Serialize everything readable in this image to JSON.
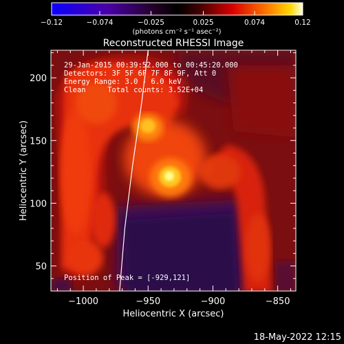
{
  "chart_data": {
    "type": "heatmap",
    "title": "Reconstructed RHESSI Image",
    "xlabel": "Heliocentric X (arcsec)",
    "ylabel": "Heliocentric Y (arcsec)",
    "xlim": [
      -1025,
      -836
    ],
    "ylim": [
      30,
      222
    ],
    "xticks": [
      -1000,
      -950,
      -900,
      -850
    ],
    "yticks": [
      50,
      100,
      150,
      200
    ],
    "xtick_labels": [
      "−1000",
      "−950",
      "−900",
      "−850"
    ],
    "ytick_labels": [
      "50",
      "100",
      "150",
      "200"
    ],
    "colorbar": {
      "range": [
        -0.12,
        0.12
      ],
      "ticks": [
        -0.12,
        -0.074,
        -0.025,
        0.025,
        0.074,
        0.12
      ],
      "tick_labels": [
        "−0.12",
        "−0.074",
        "−0.025",
        "0.025",
        "0.074",
        "0.12"
      ],
      "unit_label": "(photons cm⁻² s⁻¹ asec⁻²)"
    },
    "annotations": {
      "time": "29-Jan-2015 00:39:52.000 to 00:45:20.000",
      "detectors": "Detectors: 3F 5F 6F 7F 8F 9F, Att 0",
      "energy": "Energy Range: 3.0 - 6.0 keV",
      "clean": "Clean     Total counts: 3.52E+04",
      "peak": "Position of Peak = [-929,121]"
    },
    "peak": [
      -929,
      121
    ],
    "secondary_source": [
      -938,
      161
    ],
    "limb_curve": [
      [
        -950,
        222
      ],
      [
        -955,
        180
      ],
      [
        -962,
        130
      ],
      [
        -968,
        80
      ],
      [
        -972,
        30
      ]
    ],
    "footer": "18-May-2022 12:15"
  }
}
